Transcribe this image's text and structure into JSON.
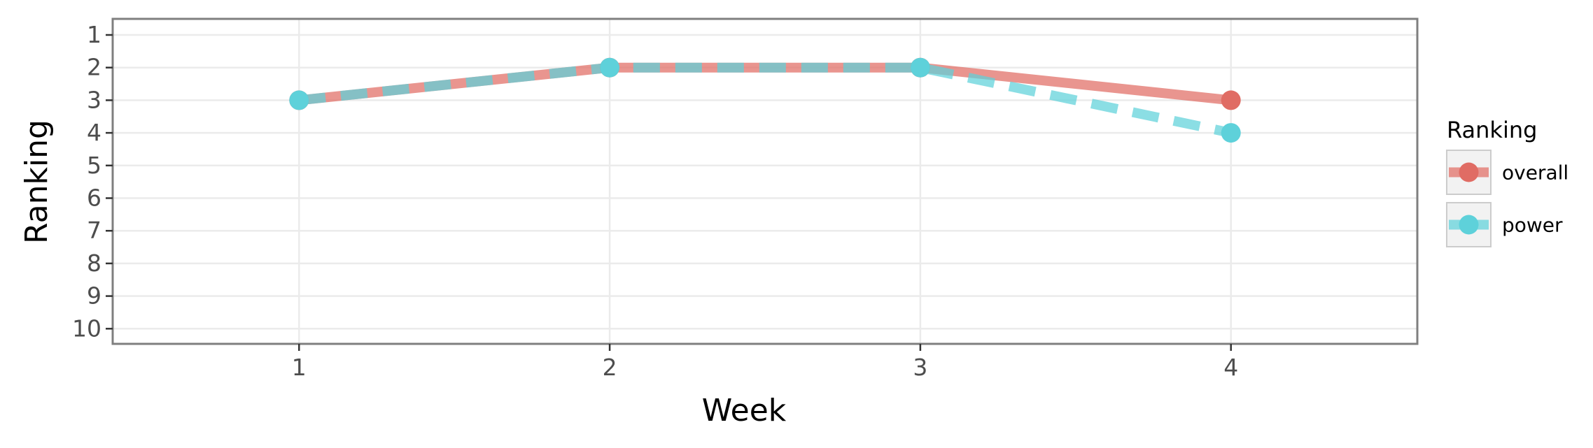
{
  "chart_data": {
    "type": "line",
    "title": "",
    "xlabel": "Week",
    "ylabel": "Ranking",
    "x": [
      1,
      2,
      3,
      4
    ],
    "x_tick_labels": [
      "1",
      "2",
      "3",
      "4"
    ],
    "y_tick_labels": [
      "1",
      "2",
      "3",
      "4",
      "5",
      "6",
      "7",
      "8",
      "9",
      "10"
    ],
    "xlim": [
      0.4,
      4.6
    ],
    "ylim": [
      1,
      10
    ],
    "y_reversed": true,
    "grid": true,
    "legend": {
      "title": "Ranking",
      "placement": "right"
    },
    "series": [
      {
        "name": "overall",
        "values": [
          3,
          2,
          2,
          3
        ],
        "color": "#e06c64",
        "line_style": "solid",
        "marker": "circle"
      },
      {
        "name": "power",
        "values": [
          3,
          2,
          2,
          4
        ],
        "color": "#5ed1da",
        "line_style": "dashed",
        "marker": "circle"
      }
    ]
  }
}
